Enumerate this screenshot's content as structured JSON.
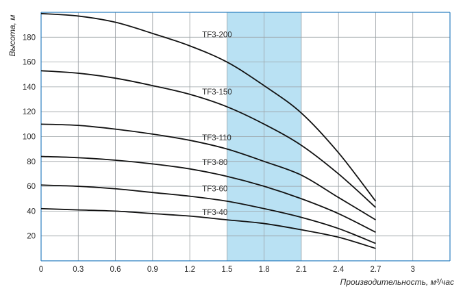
{
  "chart_data": {
    "type": "line",
    "xlabel": "Производительность, м³/час",
    "ylabel": "Высота, м",
    "xlim": [
      0,
      3.3
    ],
    "ylim": [
      0,
      200
    ],
    "x_ticks": [
      "0",
      "0.3",
      "0.6",
      "0.9",
      "1.2",
      "1.5",
      "1.8",
      "2.1",
      "2.4",
      "2.7",
      "3"
    ],
    "y_ticks": [
      "20",
      "40",
      "60",
      "80",
      "100",
      "120",
      "140",
      "160",
      "180"
    ],
    "grid": true,
    "highlight_band": {
      "x_from": 1.5,
      "x_to": 2.1,
      "color": "#b9e1f3"
    },
    "line_color": "#111111",
    "series": [
      {
        "name": "TF3-200",
        "x": [
          0,
          0.3,
          0.6,
          0.9,
          1.2,
          1.5,
          1.8,
          2.1,
          2.4,
          2.7
        ],
        "y": [
          199,
          197,
          192,
          183,
          173,
          160,
          141,
          119,
          87,
          48
        ]
      },
      {
        "name": "TF3-150",
        "x": [
          0,
          0.3,
          0.6,
          0.9,
          1.2,
          1.5,
          1.8,
          2.1,
          2.4,
          2.7
        ],
        "y": [
          153,
          151,
          147,
          141,
          134,
          124,
          110,
          93,
          70,
          43
        ]
      },
      {
        "name": "TF3-110",
        "x": [
          0,
          0.3,
          0.6,
          0.9,
          1.2,
          1.5,
          1.8,
          2.1,
          2.4,
          2.7
        ],
        "y": [
          110,
          109,
          106,
          102,
          97,
          90,
          80,
          69,
          51,
          33
        ]
      },
      {
        "name": "TF3-80",
        "x": [
          0,
          0.3,
          0.6,
          0.9,
          1.2,
          1.5,
          1.8,
          2.1,
          2.4,
          2.7
        ],
        "y": [
          84,
          83,
          81,
          78,
          74,
          68,
          60,
          50,
          38,
          23
        ]
      },
      {
        "name": "TF3-60",
        "x": [
          0,
          0.3,
          0.6,
          0.9,
          1.2,
          1.5,
          1.8,
          2.1,
          2.4,
          2.7
        ],
        "y": [
          61,
          60,
          58,
          55,
          52,
          48,
          42,
          35,
          26,
          14
        ]
      },
      {
        "name": "TF3-40",
        "x": [
          0,
          0.3,
          0.6,
          0.9,
          1.2,
          1.5,
          1.8,
          2.1,
          2.4,
          2.7
        ],
        "y": [
          42,
          41,
          40,
          38,
          36,
          33,
          30,
          25,
          19,
          10
        ]
      }
    ],
    "series_labels": [
      {
        "text": "TF3-200",
        "x": 1.3,
        "y": 180
      },
      {
        "text": "TF3-150",
        "x": 1.3,
        "y": 134
      },
      {
        "text": "TF3-110",
        "x": 1.3,
        "y": 97
      },
      {
        "text": "TF3-80",
        "x": 1.3,
        "y": 77
      },
      {
        "text": "TF3-60",
        "x": 1.3,
        "y": 56
      },
      {
        "text": "TF3-40",
        "x": 1.3,
        "y": 37
      }
    ]
  }
}
